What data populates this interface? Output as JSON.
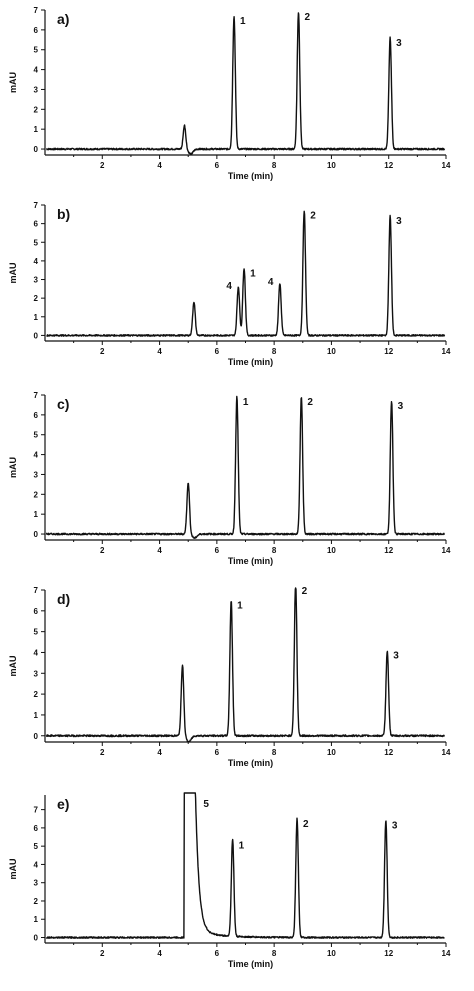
{
  "chart_data": [
    {
      "type": "line",
      "panel_label": "a)",
      "xlabel": "Time (min)",
      "ylabel": "mAU",
      "xlim": [
        0,
        14
      ],
      "ylim": [
        -0.3,
        7
      ],
      "x_ticks": [
        2,
        4,
        6,
        8,
        10,
        12,
        14
      ],
      "y_ticks": [
        0,
        1,
        2,
        3,
        4,
        5,
        6,
        7
      ],
      "grid": false,
      "peaks": [
        {
          "label": "",
          "x": 4.87,
          "height": 1.2,
          "dip": -0.25
        },
        {
          "label": "1",
          "x": 6.6,
          "height": 6.7
        },
        {
          "label": "2",
          "x": 8.85,
          "height": 6.9
        },
        {
          "label": "3",
          "x": 12.05,
          "height": 5.6
        }
      ]
    },
    {
      "type": "line",
      "panel_label": "b)",
      "xlabel": "Time (min)",
      "ylabel": "mAU",
      "xlim": [
        0,
        14
      ],
      "ylim": [
        -0.3,
        7
      ],
      "x_ticks": [
        2,
        4,
        6,
        8,
        10,
        12,
        14
      ],
      "y_ticks": [
        0,
        1,
        2,
        3,
        4,
        5,
        6,
        7
      ],
      "grid": false,
      "peaks": [
        {
          "label": "",
          "x": 5.2,
          "height": 1.8
        },
        {
          "label": "4",
          "x": 6.75,
          "height": 2.6
        },
        {
          "label": "1",
          "x": 6.95,
          "height": 3.6
        },
        {
          "label": "4",
          "x": 8.2,
          "height": 2.8
        },
        {
          "label": "2",
          "x": 9.05,
          "height": 6.7
        },
        {
          "label": "3",
          "x": 12.05,
          "height": 6.4
        }
      ]
    },
    {
      "type": "line",
      "panel_label": "c)",
      "xlabel": "Time (min)",
      "ylabel": "mAU",
      "xlim": [
        0,
        14
      ],
      "ylim": [
        -0.3,
        7
      ],
      "x_ticks": [
        2,
        4,
        6,
        8,
        10,
        12,
        14
      ],
      "y_ticks": [
        0,
        1,
        2,
        3,
        4,
        5,
        6,
        7
      ],
      "grid": false,
      "peaks": [
        {
          "label": "",
          "x": 5.0,
          "height": 2.6,
          "dip": -0.2
        },
        {
          "label": "1",
          "x": 6.7,
          "height": 6.9
        },
        {
          "label": "2",
          "x": 8.95,
          "height": 6.9
        },
        {
          "label": "3",
          "x": 12.1,
          "height": 6.7
        }
      ]
    },
    {
      "type": "line",
      "panel_label": "d)",
      "xlabel": "Time (min)",
      "ylabel": "mAU",
      "xlim": [
        0,
        14
      ],
      "ylim": [
        -0.3,
        7
      ],
      "x_ticks": [
        2,
        4,
        6,
        8,
        10,
        12,
        14
      ],
      "y_ticks": [
        0,
        1,
        2,
        3,
        4,
        5,
        6,
        7
      ],
      "grid": false,
      "peaks": [
        {
          "label": "",
          "x": 4.8,
          "height": 3.4,
          "dip": -0.3
        },
        {
          "label": "1",
          "x": 6.5,
          "height": 6.5
        },
        {
          "label": "2",
          "x": 8.75,
          "height": 7.3
        },
        {
          "label": "3",
          "x": 11.95,
          "height": 4.1
        }
      ]
    },
    {
      "type": "line",
      "panel_label": "e)",
      "xlabel": "Time (min)",
      "ylabel": "mAU",
      "xlim": [
        0,
        14
      ],
      "ylim": [
        -0.3,
        7.8
      ],
      "x_ticks": [
        2,
        4,
        6,
        8,
        10,
        12,
        14
      ],
      "y_ticks": [
        0,
        1,
        2,
        3,
        4,
        5,
        6,
        7
      ],
      "grid": false,
      "broad_peak": {
        "label": "5",
        "start": 4.85,
        "x": 5.25,
        "height": 7.8,
        "tail_end": 6.1
      },
      "peaks": [
        {
          "label": "1",
          "x": 6.55,
          "height": 5.3
        },
        {
          "label": "2",
          "x": 8.8,
          "height": 6.5
        },
        {
          "label": "3",
          "x": 11.9,
          "height": 6.4
        }
      ]
    }
  ]
}
